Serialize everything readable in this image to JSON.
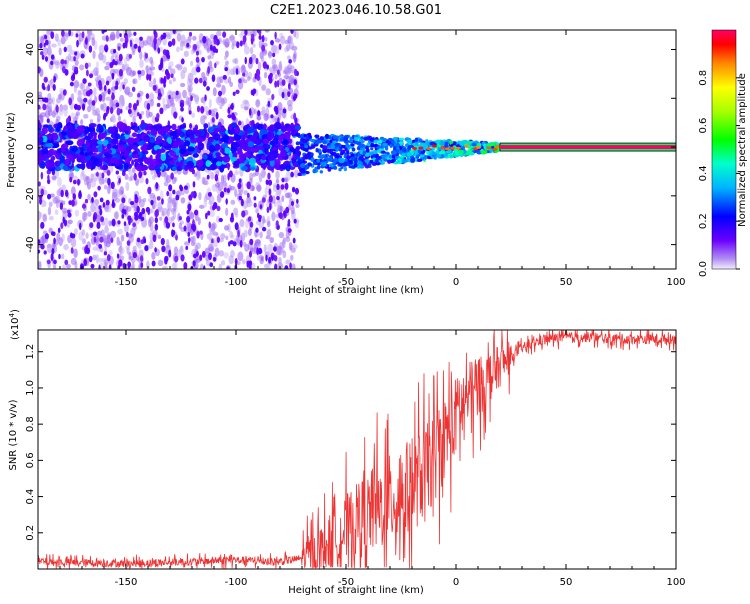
{
  "title": "C2E1.2023.046.10.58.G01",
  "colors": {
    "signal": "#ee3333",
    "frame": "#000000",
    "spectrogram_low": "#6a00ff",
    "spectrogram_high": "#ff0000"
  },
  "chart_data": [
    {
      "type": "heatmap",
      "title": "C2E1.2023.046.10.58.G01",
      "xlabel": "Height of straight line (km)",
      "ylabel": "Frequency (Hz)",
      "xlim": [
        -190,
        100
      ],
      "ylim": [
        -50,
        48
      ],
      "x_ticks": [
        -150,
        -100,
        -50,
        0,
        50,
        100
      ],
      "y_ticks": [
        -40,
        -20,
        0,
        20,
        40
      ],
      "colorbar": {
        "label": "Normalized spectral amplitude",
        "range": [
          0.0,
          1.0
        ],
        "ticks": [
          0.0,
          0.2,
          0.4,
          0.6,
          0.8
        ],
        "colormap": "rainbow"
      },
      "tracked_line": {
        "x_start": 20,
        "x_end": 100,
        "frequency": 0,
        "amplitude": 1.0
      },
      "noisy_region_x": [
        -190,
        -72
      ],
      "transition_region_x": [
        -72,
        20
      ]
    },
    {
      "type": "line",
      "xlabel": "Height of straight line (km)",
      "ylabel": "SNR (10 * v/v)",
      "y_multiplier": "(x10",
      "y_multiplier_exp": "4",
      "y_multiplier_close": ")",
      "xlim": [
        -190,
        100
      ],
      "ylim": [
        0,
        1.32
      ],
      "x_ticks": [
        -150,
        -100,
        -50,
        0,
        50,
        100
      ],
      "y_ticks": [
        0.2,
        0.4,
        0.6,
        0.8,
        1.0,
        1.2
      ],
      "series": [
        {
          "x": [
            -190,
            -150,
            -120,
            -100,
            -80,
            -70,
            -60,
            -50,
            -40,
            -30,
            -20,
            -10,
            0,
            5,
            10,
            20,
            30,
            40,
            50,
            60,
            70,
            80,
            90,
            100
          ],
          "values": [
            0.04,
            0.03,
            0.04,
            0.05,
            0.04,
            0.06,
            0.12,
            0.22,
            0.3,
            0.38,
            0.45,
            0.6,
            0.85,
            0.95,
            1.0,
            1.12,
            1.22,
            1.27,
            1.28,
            1.28,
            1.27,
            1.27,
            1.27,
            1.27
          ]
        }
      ]
    }
  ]
}
